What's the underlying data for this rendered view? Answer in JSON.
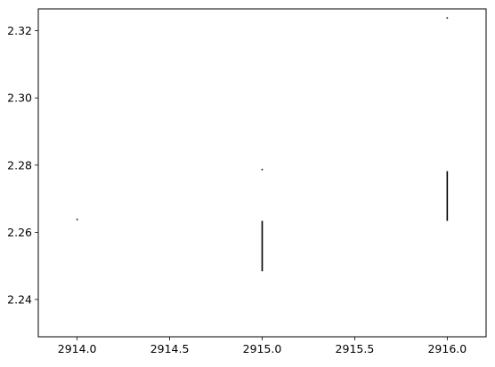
{
  "chart_data": {
    "type": "errorbar",
    "title": "",
    "xlabel": "",
    "ylabel": "",
    "xlim": [
      2913.79,
      2916.21
    ],
    "ylim": [
      2.2289,
      2.3265
    ],
    "xticks": [
      2914.0,
      2914.5,
      2915.0,
      2915.5,
      2916.0
    ],
    "xtick_labels": [
      "2914.0",
      "2914.5",
      "2915.0",
      "2915.5",
      "2916.0"
    ],
    "yticks": [
      2.24,
      2.26,
      2.28,
      2.3,
      2.32
    ],
    "ytick_labels": [
      "2.24",
      "2.26",
      "2.28",
      "2.30",
      "2.32"
    ],
    "grid": false,
    "color": "#000000",
    "segments": [
      {
        "x": 2914.0,
        "y_low": 2.2636,
        "y_high": 2.264
      },
      {
        "x": 2915.0,
        "y_low": 2.2785,
        "y_high": 2.2789
      },
      {
        "x": 2915.0,
        "y_low": 2.2484,
        "y_high": 2.2634
      },
      {
        "x": 2916.0,
        "y_low": 2.3236,
        "y_high": 2.324
      },
      {
        "x": 2916.0,
        "y_low": 2.2634,
        "y_high": 2.2782
      }
    ]
  }
}
